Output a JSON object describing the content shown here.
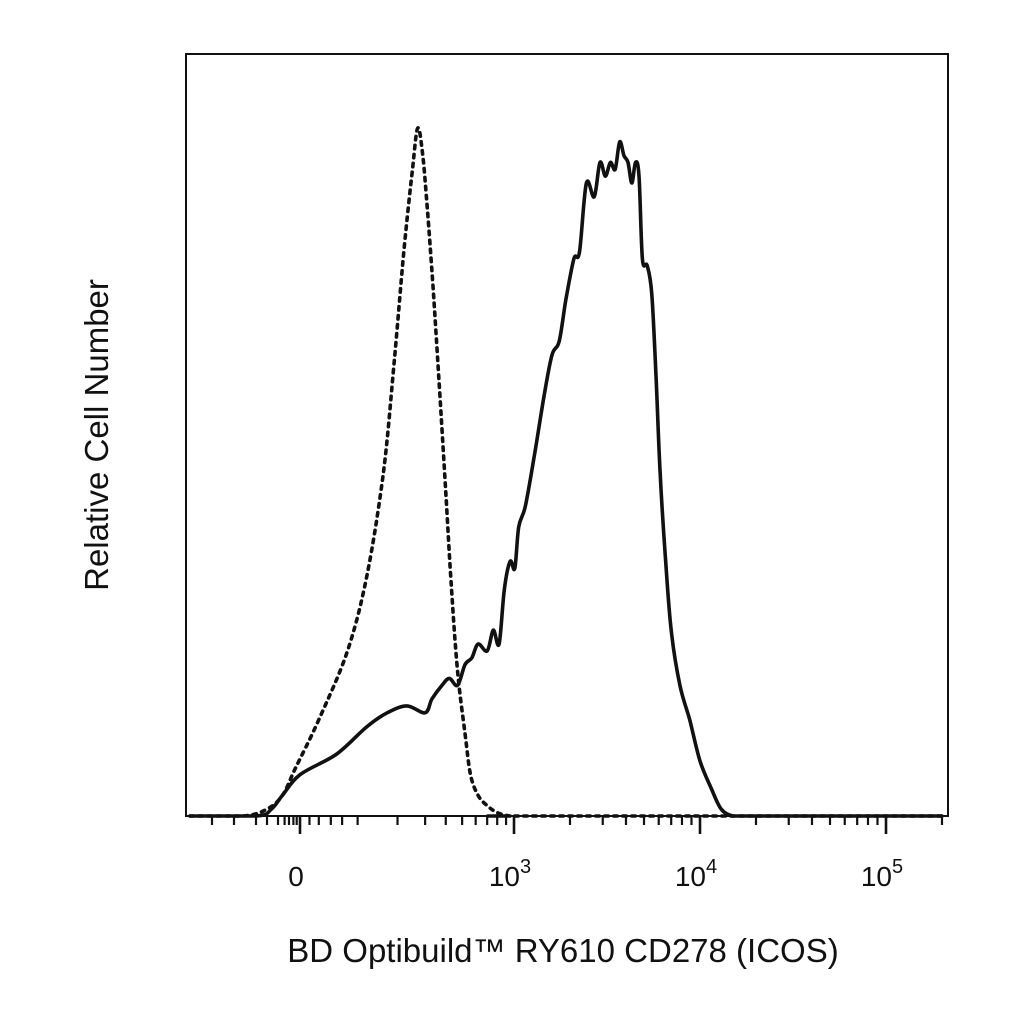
{
  "chart_data": {
    "type": "line",
    "title": "",
    "xlabel": "BD Optibuild™ RY610 CD278 (ICOS)",
    "ylabel": "Relative Cell Number",
    "x_scale": "biexponential",
    "xlim": [
      -500,
      200000
    ],
    "ylim": [
      0,
      100
    ],
    "grid": false,
    "legend": "none",
    "ticks": [
      {
        "value": 0,
        "base": "0",
        "exp": ""
      },
      {
        "value": 1000,
        "base": "10",
        "exp": "3"
      },
      {
        "value": 10000,
        "base": "10",
        "exp": "4"
      },
      {
        "value": 100000,
        "base": "10",
        "exp": "5"
      }
    ],
    "series": [
      {
        "style": "dotted",
        "color": "#111111",
        "x": [
          -500,
          -260,
          -150,
          -80,
          -20,
          30,
          80,
          120,
          160,
          190,
          220,
          250,
          270,
          290,
          310,
          335,
          365,
          400,
          430,
          470,
          520,
          560,
          620,
          700,
          800,
          950,
          1100,
          200000
        ],
        "y": [
          0,
          0,
          1,
          3,
          7,
          14,
          24,
          35,
          50,
          66,
          82,
          94,
          100,
          96,
          88,
          77,
          63,
          47,
          34,
          21,
          12,
          6,
          3,
          1.5,
          0.5,
          0,
          0,
          0
        ]
      },
      {
        "style": "solid",
        "color": "#111111",
        "x": [
          -500,
          -200,
          -130,
          -80,
          0,
          60,
          120,
          170,
          230,
          300,
          330,
          380,
          420,
          470,
          520,
          570,
          620,
          700,
          760,
          820,
          880,
          950,
          1010,
          1060,
          1150,
          1280,
          1450,
          1600,
          1750,
          1900,
          2100,
          2250,
          2450,
          2700,
          2900,
          3100,
          3300,
          3500,
          3700,
          3900,
          4100,
          4300,
          4500,
          4700,
          4900,
          5200,
          5500,
          5800,
          6100,
          6500,
          7000,
          7800,
          8800,
          10000,
          11500,
          13000,
          15000,
          17500,
          20000,
          23000,
          27000,
          32000,
          38000,
          45000,
          55000,
          70000,
          90000,
          200000
        ],
        "y": [
          0,
          0,
          1,
          3,
          6,
          9,
          13,
          15,
          16,
          15,
          17,
          19,
          20,
          19,
          22,
          23,
          25,
          24,
          27,
          25,
          33,
          37,
          36,
          42,
          45,
          52,
          61,
          67,
          69,
          75,
          81,
          82,
          92,
          90,
          95,
          93,
          95,
          94,
          98,
          96,
          95,
          92,
          95,
          93,
          81,
          80,
          76,
          64,
          50,
          38,
          27,
          19,
          14,
          8,
          4,
          1,
          0,
          0,
          0,
          0,
          0,
          0,
          0,
          0,
          0,
          0,
          0,
          0
        ]
      }
    ]
  }
}
